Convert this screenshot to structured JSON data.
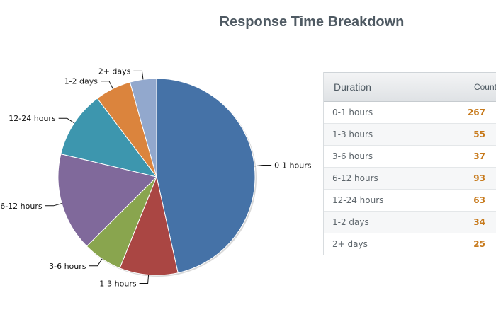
{
  "title": "Response Time Breakdown",
  "table": {
    "header_duration": "Duration",
    "header_count": "Count",
    "rows": [
      {
        "duration": "0-1 hours",
        "count": "267"
      },
      {
        "duration": "1-3 hours",
        "count": "55"
      },
      {
        "duration": "3-6 hours",
        "count": "37"
      },
      {
        "duration": "6-12 hours",
        "count": "93"
      },
      {
        "duration": "12-24 hours",
        "count": "63"
      },
      {
        "duration": "1-2 days",
        "count": "34"
      },
      {
        "duration": "2+ days",
        "count": "25"
      }
    ]
  },
  "chart_data": {
    "type": "pie",
    "title": "Response Time Breakdown",
    "categories": [
      "0-1 hours",
      "1-3 hours",
      "3-6 hours",
      "6-12 hours",
      "12-24 hours",
      "1-2 days",
      "2+ days"
    ],
    "values": [
      267,
      55,
      37,
      93,
      63,
      34,
      25
    ],
    "colors": [
      "#4572a7",
      "#aa4643",
      "#89a54e",
      "#80699b",
      "#3d96ae",
      "#db843d",
      "#92a8cd"
    ]
  }
}
